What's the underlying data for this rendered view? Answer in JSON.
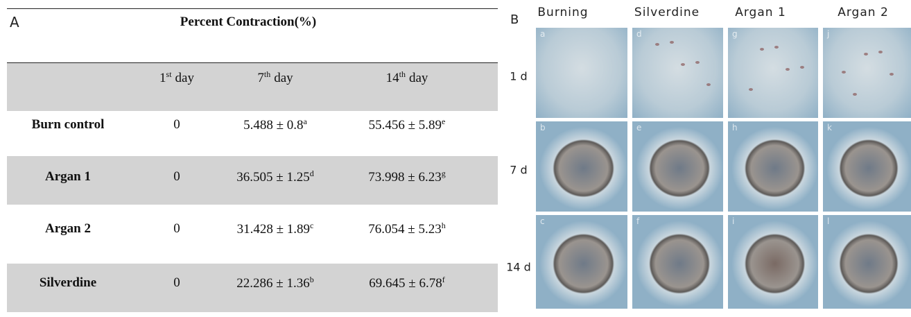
{
  "table": {
    "panel_label": "A",
    "title": "Percent Contraction(%)",
    "header": [
      {
        "num": "1",
        "sup": "st",
        "suffix": "day"
      },
      {
        "num": "7",
        "sup": "th",
        "suffix": "day"
      },
      {
        "num": "14",
        "sup": "th",
        "suffix": "day"
      }
    ],
    "rows": [
      {
        "label": "Burn control",
        "day1": "0",
        "day7": {
          "value": "5.488 ± 0.8",
          "sup": "a"
        },
        "day14": {
          "value": "55.456 ± 5.89",
          "sup": "e"
        }
      },
      {
        "label": "Argan 1",
        "day1": "0",
        "day7": {
          "value": "36.505 ± 1.25",
          "sup": "d"
        },
        "day14": {
          "value": "73.998 ± 6.23",
          "sup": "g"
        }
      },
      {
        "label": "Argan 2",
        "day1": "0",
        "day7": {
          "value": "31.428 ± 1.89",
          "sup": "c"
        },
        "day14": {
          "value": "76.054 ± 5.23",
          "sup": "h"
        }
      },
      {
        "label": "Silverdine",
        "day1": "0",
        "day7": {
          "value": "22.286 ± 1.36",
          "sup": "b"
        },
        "day14": {
          "value": "69.645 ± 6.78",
          "sup": "f"
        }
      }
    ]
  },
  "photos": {
    "panel_label": "B",
    "columns": [
      "Burning",
      "Silverdine",
      "Argan 1",
      "Argan 2"
    ],
    "rows": [
      "1 d",
      "7 d",
      "14 d"
    ],
    "letters": [
      [
        "a",
        "d",
        "g",
        "j"
      ],
      [
        "b",
        "e",
        "h",
        "k"
      ],
      [
        "c",
        "f",
        "i",
        "l"
      ]
    ]
  }
}
